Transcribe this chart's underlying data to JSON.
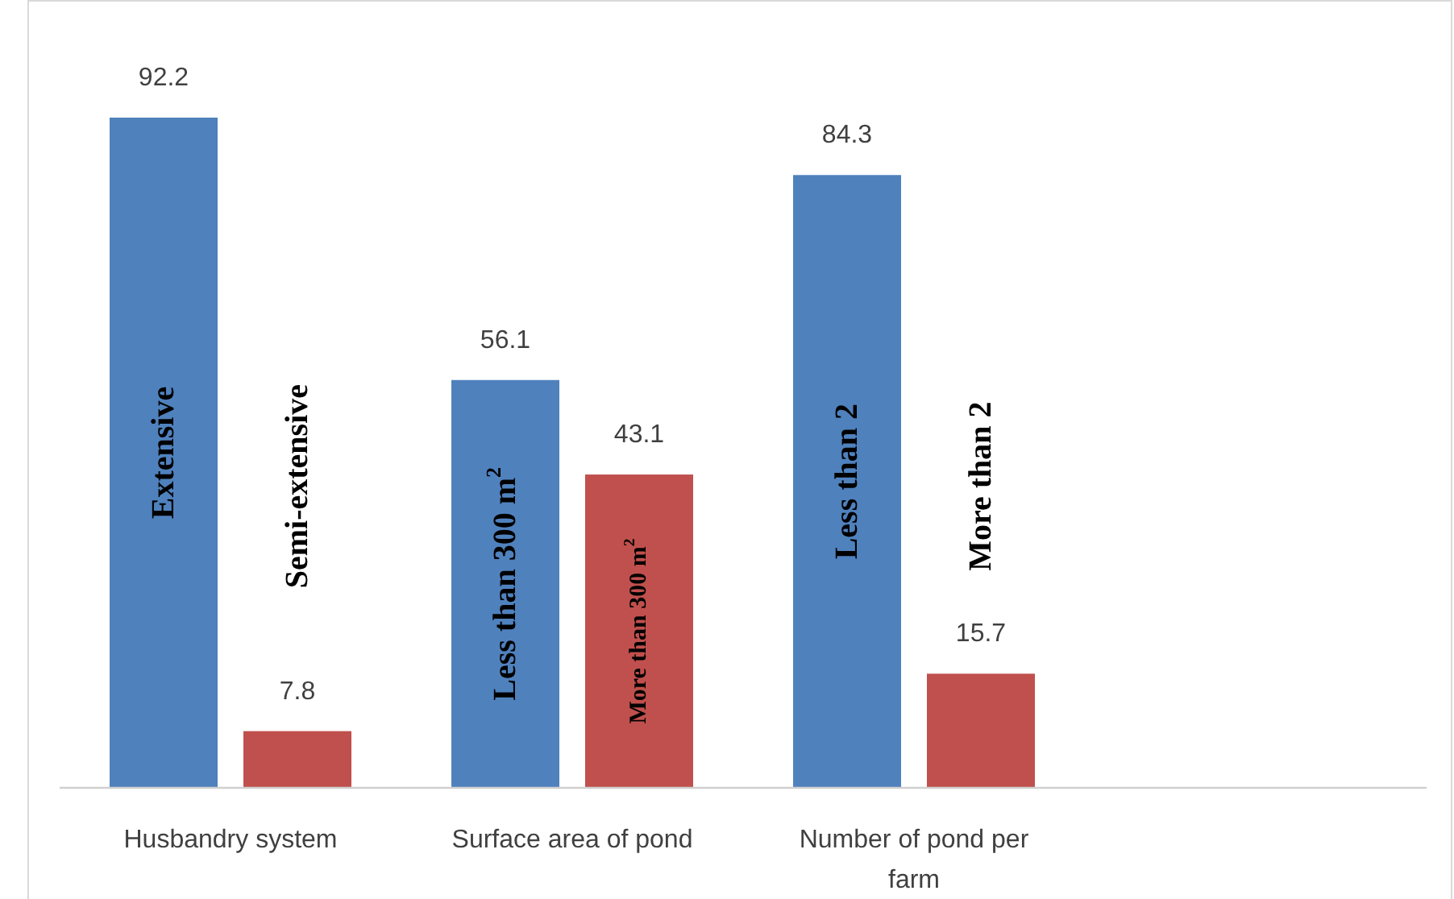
{
  "chart_data": {
    "type": "bar",
    "categories": [
      "Husbandry system",
      "Surface area of pond",
      "Number of pond per farm"
    ],
    "series": [
      {
        "color": "#4f81bd",
        "values": [
          92.2,
          56.1,
          84.3
        ]
      },
      {
        "color": "#c0504d",
        "values": [
          7.8,
          43.1,
          15.7
        ]
      }
    ],
    "data_labels": true,
    "annotations": [
      "Extensive",
      "Semi-extensive",
      "Less than 300 m$^{2}$",
      "More than 300 m$^{2}$",
      "Less than 2",
      "More than 2"
    ]
  }
}
